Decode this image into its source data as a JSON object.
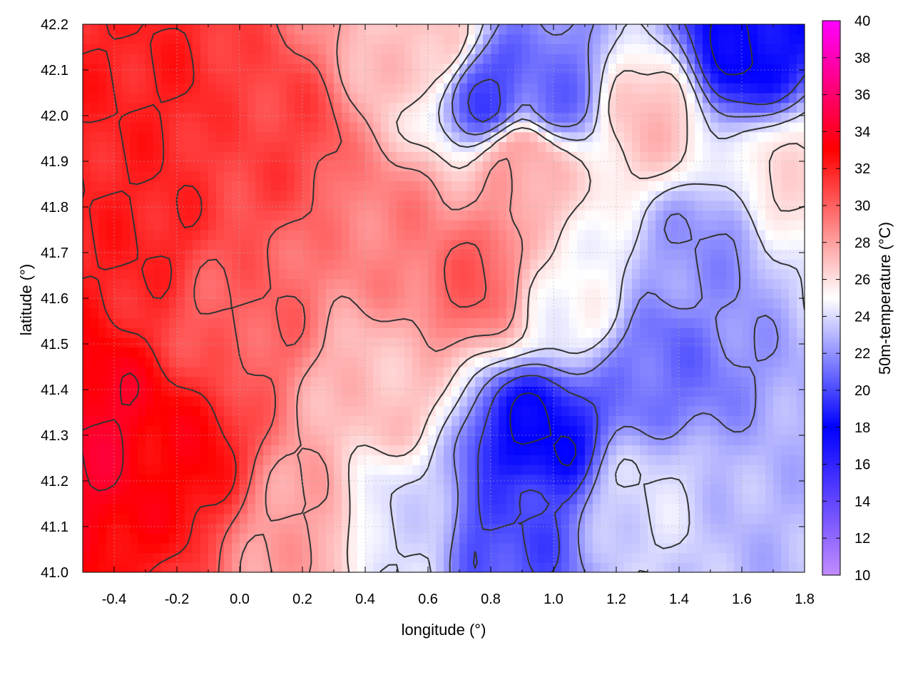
{
  "chart_data": {
    "type": "heatmap",
    "title": "",
    "xlabel": "longitude (°)",
    "ylabel": "latitude (°)",
    "colorbar_label": "50m-temperature (°C)",
    "xlim": [
      -0.5,
      1.8
    ],
    "ylim": [
      41.0,
      42.2
    ],
    "x_ticks": [
      "-0.4",
      "-0.2",
      "0.0",
      "0.2",
      "0.4",
      "0.6",
      "0.8",
      "1.0",
      "1.2",
      "1.4",
      "1.6",
      "1.8"
    ],
    "y_ticks": [
      "41.0",
      "41.1",
      "41.2",
      "41.3",
      "41.4",
      "41.5",
      "41.6",
      "41.7",
      "41.8",
      "41.9",
      "42.0",
      "42.1",
      "42.2"
    ],
    "colorbar_range": [
      10,
      40
    ],
    "colorbar_ticks": [
      "10",
      "12",
      "14",
      "16",
      "18",
      "20",
      "22",
      "24",
      "26",
      "28",
      "30",
      "32",
      "34",
      "36",
      "38",
      "40"
    ],
    "colormap": [
      {
        "value": 10,
        "color": "#c28cff"
      },
      {
        "value": 18,
        "color": "#0000ff"
      },
      {
        "value": 25,
        "color": "#ffffff"
      },
      {
        "value": 33,
        "color": "#ff0000"
      },
      {
        "value": 40,
        "color": "#ff00ff"
      }
    ],
    "grid": true,
    "contour_color": "#333333",
    "temperature_centers": [
      {
        "lon": -0.45,
        "lat": 41.3,
        "temp": 34
      },
      {
        "lon": -0.2,
        "lat": 41.25,
        "temp": 33
      },
      {
        "lon": -0.35,
        "lat": 41.75,
        "temp": 32
      },
      {
        "lon": -0.3,
        "lat": 42.05,
        "temp": 32
      },
      {
        "lon": 0.1,
        "lat": 41.95,
        "temp": 31
      },
      {
        "lon": 0.0,
        "lat": 41.55,
        "temp": 30
      },
      {
        "lon": 0.5,
        "lat": 41.75,
        "temp": 29
      },
      {
        "lon": 0.75,
        "lat": 41.65,
        "temp": 30
      },
      {
        "lon": 0.9,
        "lat": 41.9,
        "temp": 28
      },
      {
        "lon": 0.45,
        "lat": 41.4,
        "temp": 27
      },
      {
        "lon": 0.2,
        "lat": 41.1,
        "temp": 28
      },
      {
        "lon": 0.5,
        "lat": 41.1,
        "temp": 24
      },
      {
        "lon": 0.95,
        "lat": 41.3,
        "temp": 18
      },
      {
        "lon": 0.85,
        "lat": 41.1,
        "temp": 20
      },
      {
        "lon": 1.35,
        "lat": 41.45,
        "temp": 21
      },
      {
        "lon": 1.5,
        "lat": 41.7,
        "temp": 22
      },
      {
        "lon": 1.6,
        "lat": 42.15,
        "temp": 18
      },
      {
        "lon": 0.8,
        "lat": 42.05,
        "temp": 20
      },
      {
        "lon": 1.0,
        "lat": 42.05,
        "temp": 21
      },
      {
        "lon": 1.3,
        "lat": 42.0,
        "temp": 27
      },
      {
        "lon": 1.75,
        "lat": 41.85,
        "temp": 26
      },
      {
        "lon": 1.7,
        "lat": 41.1,
        "temp": 23
      },
      {
        "lon": 1.3,
        "lat": 41.15,
        "temp": 24
      },
      {
        "lon": 0.6,
        "lat": 42.15,
        "temp": 27
      },
      {
        "lon": 1.05,
        "lat": 41.6,
        "temp": 25
      }
    ]
  }
}
